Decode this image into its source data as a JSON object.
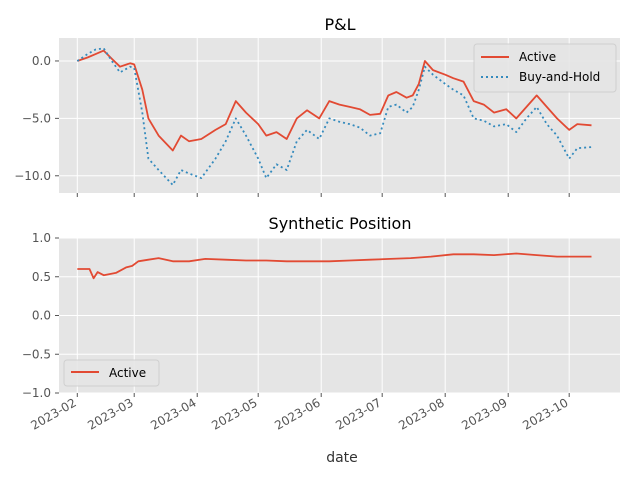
{
  "chart_data": [
    {
      "type": "line",
      "title": "P&L",
      "xlabel": "",
      "ylabel": "",
      "ylim": [
        -11.5,
        2.0
      ],
      "yticks": [
        0,
        -5,
        -10
      ],
      "grid": true,
      "legend_position": "top-right",
      "series": [
        {
          "name": "Active",
          "color": "#E24A33",
          "style": "solid",
          "x": [
            "2023-02-01",
            "2023-02-06",
            "2023-02-10",
            "2023-02-14",
            "2023-02-18",
            "2023-02-22",
            "2023-02-27",
            "2023-03-01",
            "2023-03-05",
            "2023-03-08",
            "2023-03-13",
            "2023-03-20",
            "2023-03-24",
            "2023-03-28",
            "2023-04-03",
            "2023-04-10",
            "2023-04-15",
            "2023-04-20",
            "2023-04-25",
            "2023-05-01",
            "2023-05-05",
            "2023-05-10",
            "2023-05-15",
            "2023-05-20",
            "2023-05-25",
            "2023-05-31",
            "2023-06-05",
            "2023-06-10",
            "2023-06-15",
            "2023-06-20",
            "2023-06-25",
            "2023-06-30",
            "2023-07-04",
            "2023-07-08",
            "2023-07-13",
            "2023-07-16",
            "2023-07-19",
            "2023-07-22",
            "2023-07-26",
            "2023-08-01",
            "2023-08-05",
            "2023-08-10",
            "2023-08-15",
            "2023-08-20",
            "2023-08-25",
            "2023-08-31",
            "2023-09-05",
            "2023-09-10",
            "2023-09-15",
            "2023-09-20",
            "2023-09-25",
            "2023-10-01",
            "2023-10-05",
            "2023-10-12"
          ],
          "values": [
            0.0,
            0.3,
            0.6,
            0.9,
            0.2,
            -0.5,
            -0.2,
            -0.3,
            -2.5,
            -5.0,
            -6.5,
            -7.8,
            -6.5,
            -7.0,
            -6.8,
            -6.0,
            -5.5,
            -3.5,
            -4.5,
            -5.5,
            -6.5,
            -6.2,
            -6.8,
            -5.0,
            -4.3,
            -5.0,
            -3.5,
            -3.8,
            -4.0,
            -4.2,
            -4.7,
            -4.6,
            -3.0,
            -2.7,
            -3.2,
            -3.0,
            -2.0,
            0.0,
            -0.8,
            -1.2,
            -1.5,
            -1.8,
            -3.5,
            -3.8,
            -4.5,
            -4.2,
            -5.0,
            -4.0,
            -3.0,
            -4.0,
            -5.0,
            -6.0,
            -5.5,
            -5.6
          ]
        },
        {
          "name": "Buy-and-Hold",
          "color": "#348ABD",
          "style": "dotted",
          "x": [
            "2023-02-01",
            "2023-02-06",
            "2023-02-10",
            "2023-02-14",
            "2023-02-18",
            "2023-02-22",
            "2023-02-27",
            "2023-03-01",
            "2023-03-05",
            "2023-03-08",
            "2023-03-13",
            "2023-03-20",
            "2023-03-24",
            "2023-03-28",
            "2023-04-03",
            "2023-04-10",
            "2023-04-15",
            "2023-04-20",
            "2023-04-25",
            "2023-05-01",
            "2023-05-05",
            "2023-05-10",
            "2023-05-15",
            "2023-05-20",
            "2023-05-25",
            "2023-05-31",
            "2023-06-05",
            "2023-06-10",
            "2023-06-15",
            "2023-06-20",
            "2023-06-25",
            "2023-06-30",
            "2023-07-04",
            "2023-07-08",
            "2023-07-13",
            "2023-07-16",
            "2023-07-19",
            "2023-07-22",
            "2023-07-26",
            "2023-08-01",
            "2023-08-05",
            "2023-08-10",
            "2023-08-15",
            "2023-08-20",
            "2023-08-25",
            "2023-08-31",
            "2023-09-05",
            "2023-09-10",
            "2023-09-15",
            "2023-09-20",
            "2023-09-25",
            "2023-10-01",
            "2023-10-05",
            "2023-10-12"
          ],
          "values": [
            0.0,
            0.6,
            1.0,
            1.1,
            0.0,
            -1.0,
            -0.5,
            -0.6,
            -4.5,
            -8.5,
            -9.5,
            -10.8,
            -9.5,
            -9.8,
            -10.2,
            -8.5,
            -7.0,
            -5.0,
            -6.5,
            -8.5,
            -10.2,
            -9.0,
            -9.5,
            -7.0,
            -6.0,
            -6.8,
            -5.0,
            -5.3,
            -5.5,
            -5.8,
            -6.5,
            -6.3,
            -4.0,
            -3.8,
            -4.5,
            -4.0,
            -2.5,
            -0.5,
            -1.2,
            -2.0,
            -2.5,
            -3.0,
            -5.0,
            -5.2,
            -5.7,
            -5.5,
            -6.2,
            -5.0,
            -4.0,
            -5.5,
            -6.5,
            -8.5,
            -7.6,
            -7.5
          ]
        }
      ]
    },
    {
      "type": "line",
      "title": "Synthetic Position",
      "xlabel": "date",
      "ylabel": "",
      "ylim": [
        -1.0,
        1.0
      ],
      "yticks": [
        1.0,
        0.5,
        0.0,
        -0.5,
        -1.0
      ],
      "grid": true,
      "legend_position": "bottom-left",
      "xticks": [
        "2023-02",
        "2023-03",
        "2023-04",
        "2023-05",
        "2023-06",
        "2023-07",
        "2023-08",
        "2023-09",
        "2023-10"
      ],
      "series": [
        {
          "name": "Active",
          "color": "#E24A33",
          "style": "solid",
          "x": [
            "2023-02-01",
            "2023-02-07",
            "2023-02-09",
            "2023-02-11",
            "2023-02-14",
            "2023-02-20",
            "2023-02-25",
            "2023-02-28",
            "2023-03-03",
            "2023-03-08",
            "2023-03-13",
            "2023-03-20",
            "2023-03-28",
            "2023-04-05",
            "2023-04-15",
            "2023-04-25",
            "2023-05-05",
            "2023-05-15",
            "2023-05-25",
            "2023-06-05",
            "2023-06-15",
            "2023-06-25",
            "2023-07-05",
            "2023-07-15",
            "2023-07-25",
            "2023-08-05",
            "2023-08-15",
            "2023-08-25",
            "2023-09-05",
            "2023-09-15",
            "2023-09-25",
            "2023-10-01",
            "2023-10-12"
          ],
          "values": [
            0.6,
            0.6,
            0.48,
            0.56,
            0.52,
            0.55,
            0.62,
            0.64,
            0.7,
            0.72,
            0.74,
            0.7,
            0.7,
            0.73,
            0.72,
            0.71,
            0.71,
            0.7,
            0.7,
            0.7,
            0.71,
            0.72,
            0.73,
            0.74,
            0.76,
            0.79,
            0.79,
            0.78,
            0.8,
            0.78,
            0.76,
            0.76,
            0.76
          ]
        }
      ]
    }
  ]
}
